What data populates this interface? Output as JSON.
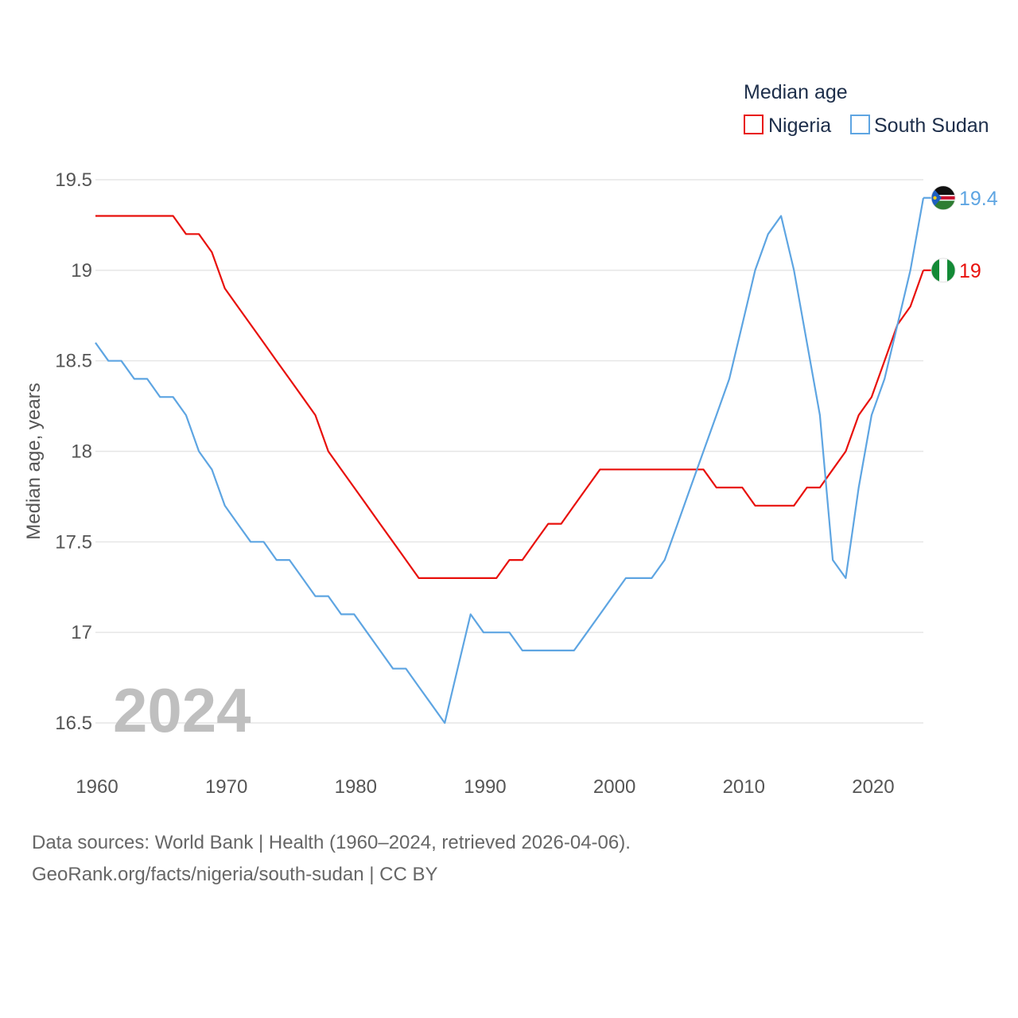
{
  "chart_data": {
    "type": "line",
    "title": "Median age",
    "ylabel": "Median age, years",
    "xlabel": "",
    "highlight_year": "2024",
    "xlim": [
      1960,
      2024
    ],
    "ylim": [
      16.5,
      19.5
    ],
    "x_ticks": [
      1960,
      1970,
      1980,
      1990,
      2000,
      2010,
      2020
    ],
    "y_ticks": [
      16.5,
      17,
      17.5,
      18,
      18.5,
      19,
      19.5
    ],
    "y_tick_labels": [
      "16.5",
      "17",
      "17.5",
      "18",
      "18.5",
      "19",
      "19.5"
    ],
    "grid": true,
    "legend_position": "top-right",
    "x": [
      1960,
      1961,
      1962,
      1963,
      1964,
      1965,
      1966,
      1967,
      1968,
      1969,
      1970,
      1971,
      1972,
      1973,
      1974,
      1975,
      1976,
      1977,
      1978,
      1979,
      1980,
      1981,
      1982,
      1983,
      1984,
      1985,
      1986,
      1987,
      1988,
      1989,
      1990,
      1991,
      1992,
      1993,
      1994,
      1995,
      1996,
      1997,
      1998,
      1999,
      2000,
      2001,
      2002,
      2003,
      2004,
      2005,
      2006,
      2007,
      2008,
      2009,
      2010,
      2011,
      2012,
      2013,
      2014,
      2015,
      2016,
      2017,
      2018,
      2019,
      2020,
      2021,
      2022,
      2023,
      2024
    ],
    "series": [
      {
        "name": "Nigeria",
        "color": "#e8100c",
        "end_label": "19",
        "flag": "nigeria-flag",
        "values": [
          19.3,
          19.3,
          19.3,
          19.3,
          19.3,
          19.3,
          19.3,
          19.2,
          19.2,
          19.1,
          18.9,
          18.8,
          18.7,
          18.6,
          18.5,
          18.4,
          18.3,
          18.2,
          18.0,
          17.9,
          17.8,
          17.7,
          17.6,
          17.5,
          17.4,
          17.3,
          17.3,
          17.3,
          17.3,
          17.3,
          17.3,
          17.3,
          17.4,
          17.4,
          17.5,
          17.6,
          17.6,
          17.7,
          17.8,
          17.9,
          17.9,
          17.9,
          17.9,
          17.9,
          17.9,
          17.9,
          17.9,
          17.9,
          17.8,
          17.8,
          17.8,
          17.7,
          17.7,
          17.7,
          17.7,
          17.8,
          17.8,
          17.9,
          18.0,
          18.2,
          18.3,
          18.5,
          18.7,
          18.8,
          19.0
        ]
      },
      {
        "name": "South Sudan",
        "color": "#5ea5e2",
        "end_label": "19.4",
        "flag": "south-sudan-flag",
        "values": [
          18.6,
          18.5,
          18.5,
          18.4,
          18.4,
          18.3,
          18.3,
          18.2,
          18.0,
          17.9,
          17.7,
          17.6,
          17.5,
          17.5,
          17.4,
          17.4,
          17.3,
          17.2,
          17.2,
          17.1,
          17.1,
          17.0,
          16.9,
          16.8,
          16.8,
          16.7,
          16.6,
          16.5,
          16.8,
          17.1,
          17.0,
          17.0,
          17.0,
          16.9,
          16.9,
          16.9,
          16.9,
          16.9,
          17.0,
          17.1,
          17.2,
          17.3,
          17.3,
          17.3,
          17.4,
          17.6,
          17.8,
          18.0,
          18.2,
          18.4,
          18.7,
          19.0,
          19.2,
          19.3,
          19.0,
          18.6,
          18.2,
          17.4,
          17.3,
          17.8,
          18.2,
          18.4,
          18.7,
          19.0,
          19.4
        ]
      }
    ]
  },
  "footer": {
    "line1": "Data sources: World Bank | Health (1960–2024, retrieved 2026-04-06).",
    "line2": "GeoRank.org/facts/nigeria/south-sudan | CC BY"
  }
}
